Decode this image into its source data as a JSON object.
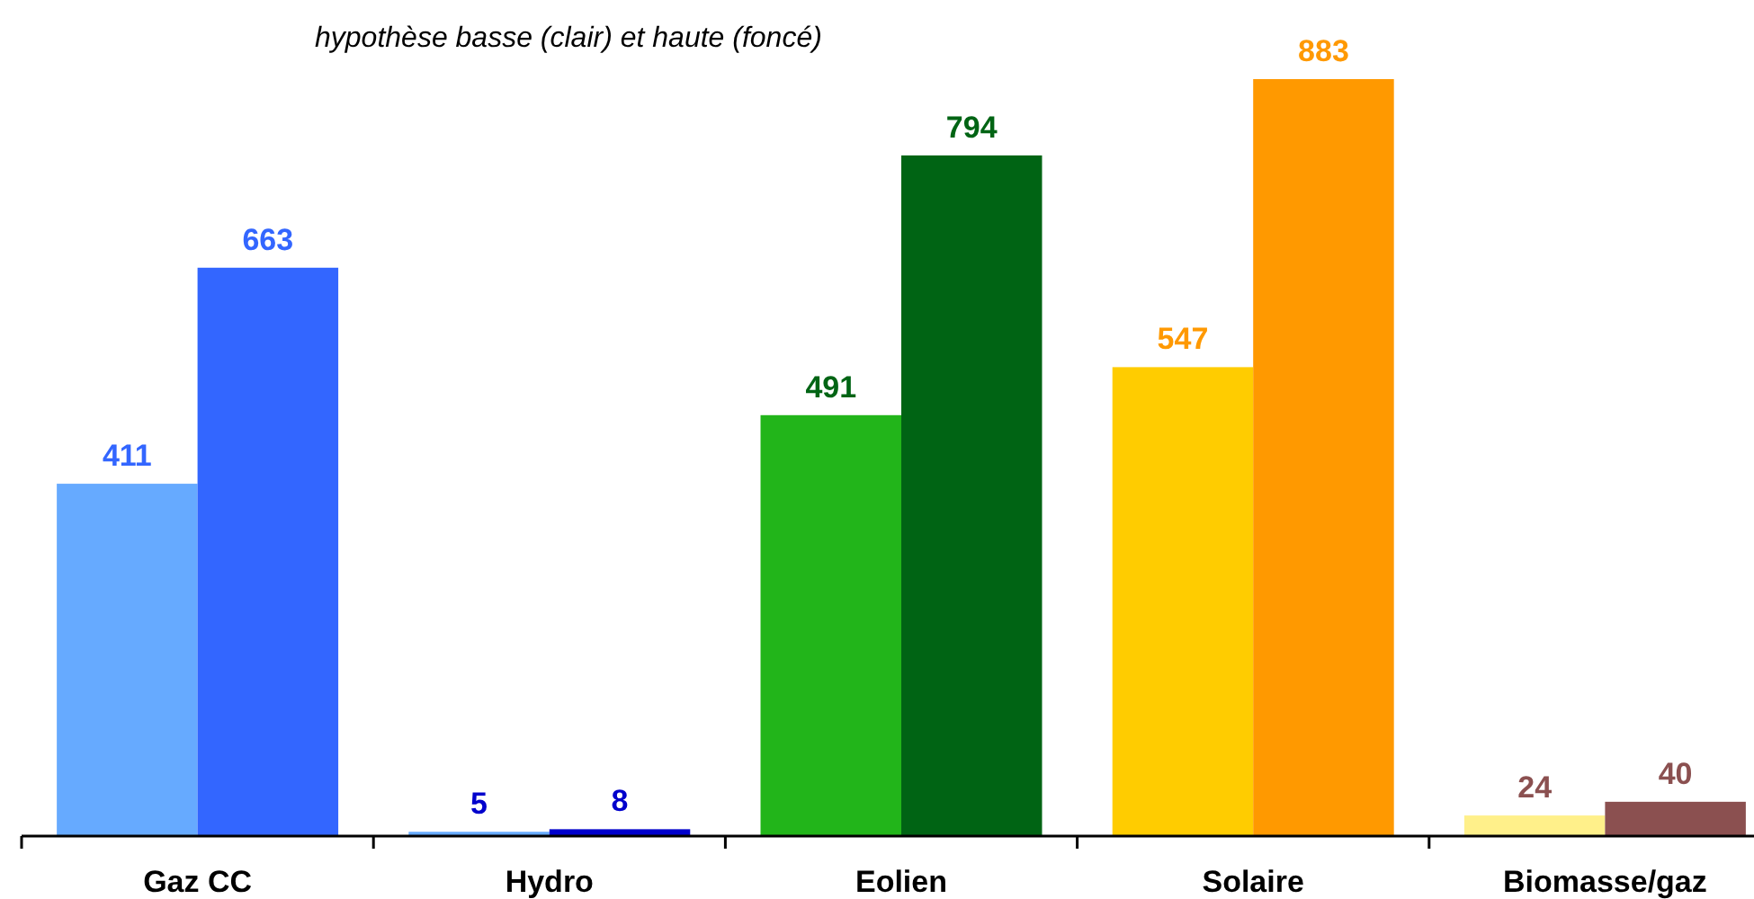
{
  "chart_data": {
    "type": "bar",
    "subtitle": "hypothèse basse (clair) et haute (foncé)",
    "categories": [
      "Gaz CC",
      "Hydro",
      "Eolien",
      "Solaire",
      "Biomasse/gaz"
    ],
    "series": [
      {
        "colors": [
          "#66aaff",
          "#66aaff",
          "#22b51a",
          "#ffcc00",
          "#fff08a"
        ],
        "values": [
          411,
          5,
          491,
          547,
          24
        ]
      },
      {
        "colors": [
          "#3366ff",
          "#0000cc",
          "#006414",
          "#ff9900",
          "#8b5050"
        ],
        "values": [
          663,
          8,
          794,
          883,
          40
        ]
      }
    ],
    "data_labels": true
  }
}
